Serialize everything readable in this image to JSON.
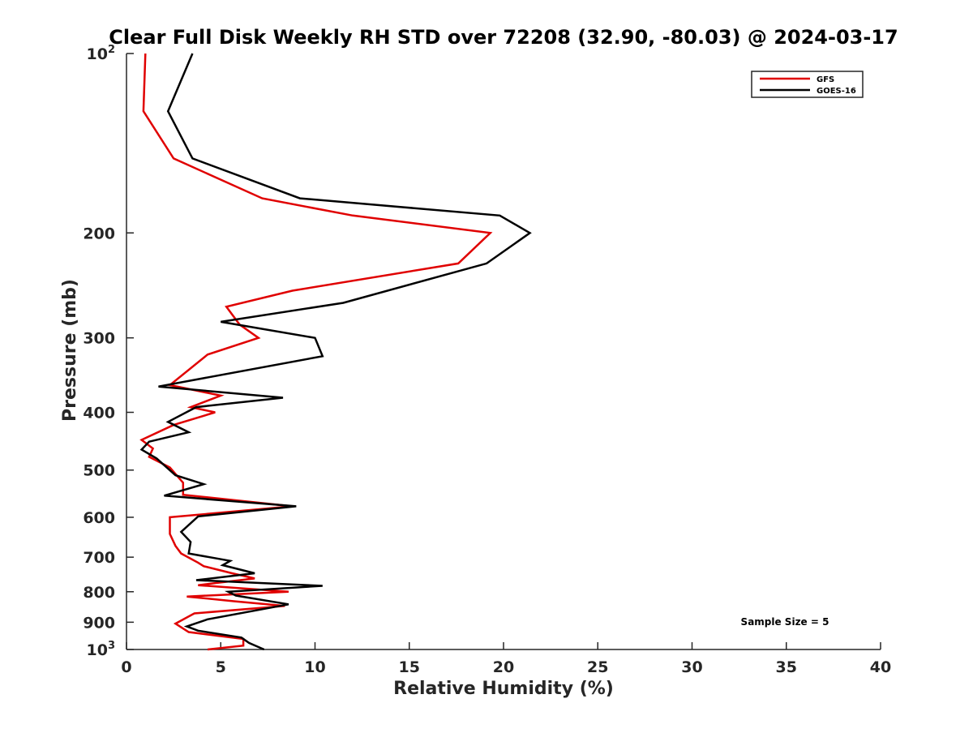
{
  "chart_data": {
    "type": "line",
    "title": "Clear Full Disk Weekly RH STD over 72208 (32.90, -80.03) @ 2024-03-17",
    "xlabel": "Relative Humidity (%)",
    "ylabel": "Pressure (mb)",
    "xlim": [
      0,
      40
    ],
    "ylim": [
      100,
      1000
    ],
    "y_scale": "log",
    "y_reversed": true,
    "x_ticks": [
      0,
      5,
      10,
      15,
      20,
      25,
      30,
      35,
      40
    ],
    "x_tick_labels": [
      "0",
      "5",
      "10",
      "15",
      "20",
      "25",
      "30",
      "35",
      "40"
    ],
    "y_ticks": [
      200,
      300,
      400,
      500,
      600,
      700,
      800,
      900
    ],
    "y_tick_labels": [
      "200",
      "300",
      "400",
      "500",
      "600",
      "700",
      "800",
      "900"
    ],
    "y_tick_top": {
      "base": "10",
      "exp": "2",
      "value": 100
    },
    "y_tick_bottom": {
      "base": "10",
      "exp": "3",
      "value": 1000
    },
    "grid": false,
    "legend_position": "top-right",
    "annotation": "Sample Size = 5",
    "series": [
      {
        "name": "GFS",
        "color": "#e00000",
        "points": [
          [
            1.0,
            100
          ],
          [
            0.9,
            125
          ],
          [
            2.5,
            150
          ],
          [
            7.2,
            175
          ],
          [
            12.0,
            187
          ],
          [
            19.3,
            200
          ],
          [
            17.6,
            225
          ],
          [
            8.8,
            250
          ],
          [
            5.3,
            266
          ],
          [
            6.0,
            285
          ],
          [
            7.0,
            300
          ],
          [
            4.3,
            320
          ],
          [
            2.3,
            360
          ],
          [
            5.0,
            375
          ],
          [
            3.4,
            392
          ],
          [
            4.7,
            400
          ],
          [
            2.5,
            420
          ],
          [
            0.8,
            445
          ],
          [
            1.4,
            460
          ],
          [
            1.2,
            475
          ],
          [
            2.3,
            495
          ],
          [
            3.0,
            525
          ],
          [
            3.0,
            550
          ],
          [
            8.8,
            575
          ],
          [
            2.3,
            600
          ],
          [
            2.3,
            640
          ],
          [
            2.6,
            670
          ],
          [
            2.9,
            690
          ],
          [
            3.8,
            715
          ],
          [
            4.1,
            725
          ],
          [
            5.6,
            745
          ],
          [
            6.8,
            760
          ],
          [
            3.8,
            780
          ],
          [
            8.6,
            800
          ],
          [
            3.2,
            815
          ],
          [
            5.7,
            830
          ],
          [
            8.4,
            845
          ],
          [
            3.6,
            870
          ],
          [
            2.6,
            905
          ],
          [
            3.3,
            935
          ],
          [
            6.2,
            960
          ],
          [
            6.2,
            985
          ],
          [
            4.3,
            1000
          ]
        ]
      },
      {
        "name": "GOES-16",
        "color": "#000000",
        "points": [
          [
            3.5,
            100
          ],
          [
            2.2,
            125
          ],
          [
            3.5,
            150
          ],
          [
            9.2,
            175
          ],
          [
            19.8,
            187
          ],
          [
            21.4,
            200
          ],
          [
            19.1,
            225
          ],
          [
            11.5,
            262
          ],
          [
            5.0,
            282
          ],
          [
            10.0,
            300
          ],
          [
            10.4,
            322
          ],
          [
            1.7,
            362
          ],
          [
            8.3,
            378
          ],
          [
            3.7,
            392
          ],
          [
            2.2,
            415
          ],
          [
            3.3,
            432
          ],
          [
            1.2,
            448
          ],
          [
            0.8,
            462
          ],
          [
            1.6,
            478
          ],
          [
            2.6,
            510
          ],
          [
            4.1,
            528
          ],
          [
            2.0,
            552
          ],
          [
            9.0,
            575
          ],
          [
            3.8,
            598
          ],
          [
            2.9,
            635
          ],
          [
            3.4,
            660
          ],
          [
            3.3,
            690
          ],
          [
            5.5,
            710
          ],
          [
            5.1,
            722
          ],
          [
            6.8,
            745
          ],
          [
            3.7,
            765
          ],
          [
            10.4,
            782
          ],
          [
            5.4,
            800
          ],
          [
            5.8,
            812
          ],
          [
            8.6,
            840
          ],
          [
            4.3,
            890
          ],
          [
            3.2,
            915
          ],
          [
            3.8,
            930
          ],
          [
            6.1,
            955
          ],
          [
            6.5,
            975
          ],
          [
            7.3,
            1000
          ]
        ]
      }
    ]
  }
}
